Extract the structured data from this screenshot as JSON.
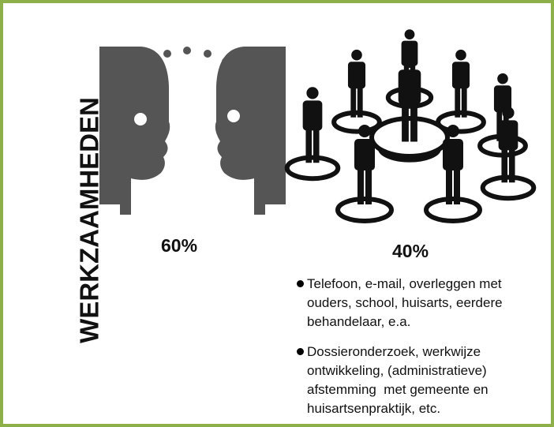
{
  "title": "WERKZAAMHEDEN",
  "left": {
    "percentage": "60%"
  },
  "right": {
    "percentage": "40%"
  },
  "bullets": [
    "Telefoon, e-mail, overleggen met ouders, school, huisarts, eerdere behandelaar, e.a.",
    "Dossieronderzoek, werkwijze ontwikkeling, (administratieve) afstemming  met gemeente en huisartsenpraktijk, etc."
  ]
}
